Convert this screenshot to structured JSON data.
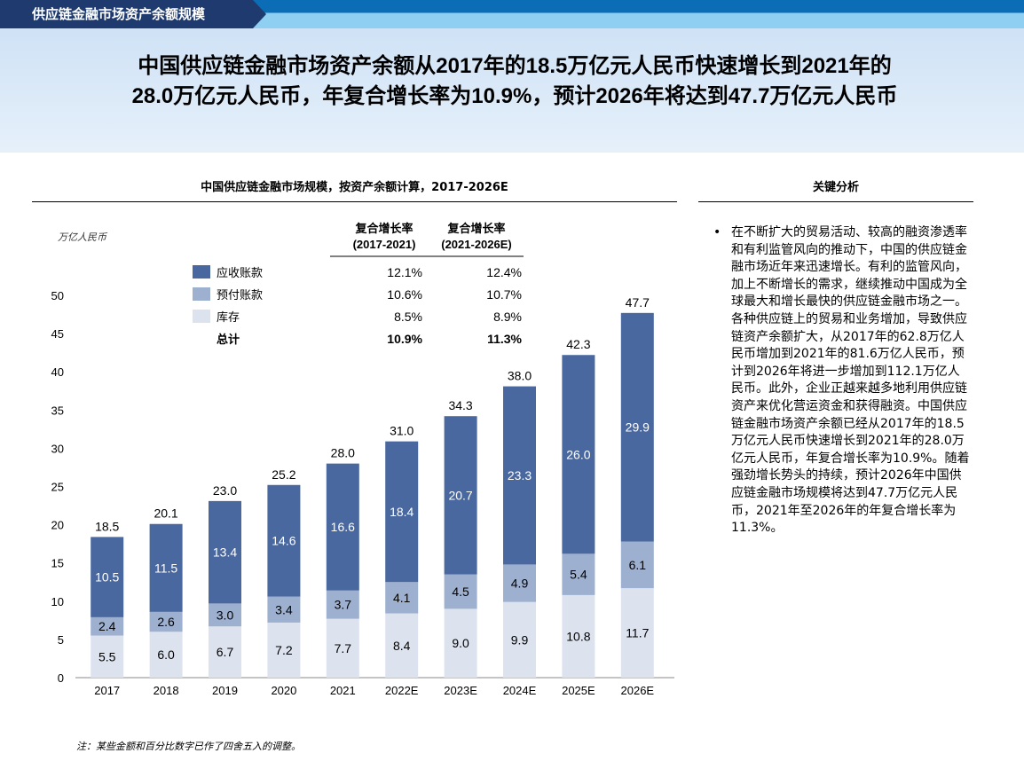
{
  "header": {
    "tab_title": "供应链金融市场资产余额规模",
    "headline_line1": "中国供应链金融市场资产余额从2017年的18.5万亿元人民币快速增长到2021年的",
    "headline_line2": "28.0万亿元人民币，年复合增长率为10.9%，预计2026年将达到47.7万亿元人民币"
  },
  "key_analysis": {
    "title": "关键分析",
    "text": "在不断扩大的贸易活动、较高的融资渗透率和有利监管风向的推动下，中国的供应链金融市场近年来迅速增长。有利的监管风向，加上不断增长的需求，继续推动中国成为全球最大和增长最快的供应链金融市场之一。各种供应链上的贸易和业务增加，导致供应链资产余额扩大，从2017年的62.8万亿人民币增加到2021年的81.6万亿人民币，预计到2026年将进一步增加到112.1万亿人民币。此外，企业正越来越多地利用供应链资产来优化营运资金和获得融资。中国供应链金融市场资产余额已经从2017年的18.5万亿元人民币快速增长到2021年的28.0万亿元人民币，年复合增长率为10.9%。随着强劲增长势头的持续，预计2026年中国供应链金融市场规模将达到47.7万亿元人民币，2021年至2026年的年复合增长率为11.3%。"
  },
  "footnote": "注：某些金额和百分比数字已作了四舍五入的调整。",
  "chart_data": {
    "type": "bar",
    "stacked": true,
    "title": "中国供应链金融市场规模，按资产余额计算，2017-2026E",
    "ylabel": "万亿人民币",
    "ylim": [
      0,
      50
    ],
    "yticks": [
      0,
      5,
      10,
      15,
      20,
      25,
      30,
      35,
      40,
      45,
      50
    ],
    "categories": [
      "2017",
      "2018",
      "2019",
      "2020",
      "2021",
      "2022E",
      "2023E",
      "2024E",
      "2025E",
      "2026E"
    ],
    "series": [
      {
        "name": "库存",
        "color": "#dde3ee",
        "values": [
          5.5,
          6.0,
          6.7,
          7.2,
          7.7,
          8.4,
          9.0,
          9.9,
          10.8,
          11.7
        ]
      },
      {
        "name": "预付账款",
        "color": "#9eb0cf",
        "values": [
          2.4,
          2.6,
          3.0,
          3.4,
          3.7,
          4.1,
          4.5,
          4.9,
          5.4,
          6.1
        ]
      },
      {
        "name": "应收账款",
        "color": "#4a68a0",
        "values": [
          10.5,
          11.5,
          13.4,
          14.6,
          16.6,
          18.4,
          20.7,
          23.3,
          26.0,
          29.9
        ]
      }
    ],
    "totals": [
      "18.5",
      "20.1",
      "23.0",
      "25.2",
      "28.0",
      "31.0",
      "34.3",
      "38.0",
      "42.3",
      "47.7"
    ],
    "cagr_table": {
      "headers": [
        {
          "l1": "复合增长率",
          "l2": "(2017-2021)"
        },
        {
          "l1": "复合增长率",
          "l2": "(2021-2026E)"
        }
      ],
      "rows": [
        {
          "label": "应收账款",
          "a": "12.1%",
          "b": "12.4%"
        },
        {
          "label": "预付账款",
          "a": "10.6%",
          "b": "10.7%"
        },
        {
          "label": "库存",
          "a": "8.5%",
          "b": "8.9%"
        },
        {
          "label": "总计",
          "a": "10.9%",
          "b": "11.3%"
        }
      ]
    }
  }
}
